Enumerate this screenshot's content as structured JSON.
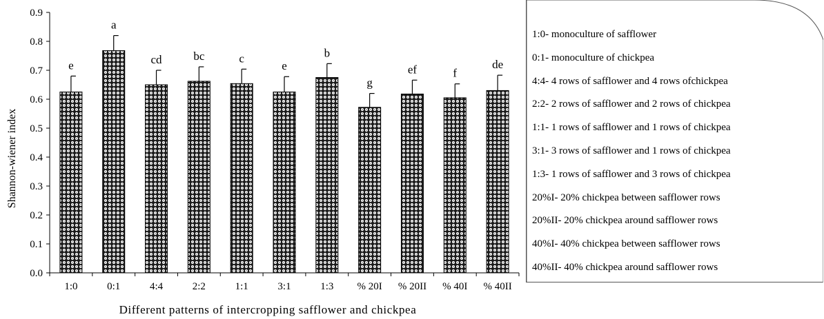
{
  "chart_data": {
    "type": "bar",
    "title": "",
    "xlabel": "Different patterns of intercropping safflower and chickpea",
    "ylabel": "Shannon-wiener index",
    "ylim": [
      0,
      0.9
    ],
    "yticks": [
      "0.0",
      "0.1",
      "0.2",
      "0.3",
      "0.4",
      "0.5",
      "0.6",
      "0.7",
      "0.8",
      "0.9"
    ],
    "categories": [
      "1:0",
      "0:1",
      "4:4",
      "2:2",
      "1:1",
      "3:1",
      "1:3",
      "% 20I",
      "% 20II",
      "% 40I",
      "% 40II"
    ],
    "values": [
      0.625,
      0.768,
      0.65,
      0.662,
      0.654,
      0.625,
      0.675,
      0.572,
      0.618,
      0.605,
      0.63
    ],
    "error": [
      0.055,
      0.052,
      0.05,
      0.05,
      0.05,
      0.053,
      0.048,
      0.048,
      0.048,
      0.048,
      0.053
    ],
    "letters": [
      "e",
      "a",
      "cd",
      "bc",
      "c",
      "e",
      "b",
      "g",
      "ef",
      "f",
      "de"
    ],
    "grid": false,
    "bar_pattern": "black-dotted-checker"
  },
  "legend": [
    "1:0- monoculture of safflower",
    "0:1- monoculture of chickpea",
    "4:4- 4 rows of safflower and 4 rows ofchickpea",
    "2:2- 2 rows of safflower and 2 rows of chickpea",
    "1:1- 1 rows of safflower and 1 rows of chickpea",
    "3:1- 3 rows of safflower and 1 rows of chickpea",
    "1:3- 1 rows of safflower and 3 rows of chickpea",
    "20%I- 20% chickpea between safflower rows",
    "20%II- 20% chickpea around safflower rows",
    "40%I- 40% chickpea between safflower rows",
    "40%II- 40% chickpea around safflower rows"
  ]
}
